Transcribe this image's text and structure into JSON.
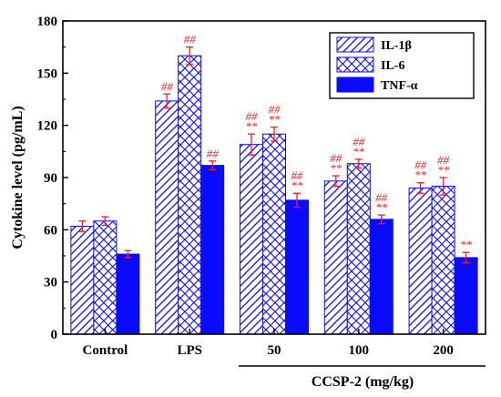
{
  "chart_data": {
    "type": "bar",
    "title": "",
    "xlabel": "CCSP-2 (mg/kg)",
    "ylabel": "Cytokine level (pg/mL)",
    "ylim": [
      0,
      180
    ],
    "yticks": [
      "0",
      "30",
      "60",
      "90",
      "120",
      "150",
      "180"
    ],
    "categories": [
      "Control",
      "LPS",
      "50",
      "100",
      "200"
    ],
    "bracket_categories": [
      "50",
      "100",
      "200"
    ],
    "legend_position": "top-right",
    "series": [
      {
        "name": "IL-1β",
        "pattern": "diagonal-hatch",
        "values": [
          62,
          134,
          109,
          88,
          84
        ],
        "errors": [
          3,
          4,
          6,
          3,
          3
        ],
        "annotations": [
          [],
          [
            "##"
          ],
          [
            "##",
            "**"
          ],
          [
            "##",
            "**"
          ],
          [
            "##",
            "**"
          ]
        ]
      },
      {
        "name": "IL-6",
        "pattern": "cross-hatch",
        "values": [
          65,
          160,
          115,
          98,
          85
        ],
        "errors": [
          2.5,
          5,
          4,
          2.5,
          5
        ],
        "annotations": [
          [],
          [
            "##"
          ],
          [
            "##",
            "**"
          ],
          [
            "##",
            "**"
          ],
          [
            "##",
            "**"
          ]
        ]
      },
      {
        "name": "TNF-α",
        "pattern": "solid",
        "values": [
          46,
          97,
          77,
          66,
          44
        ],
        "errors": [
          2,
          2.5,
          4,
          2.5,
          3
        ],
        "annotations": [
          [],
          [
            "##"
          ],
          [
            "##",
            "**"
          ],
          [
            "##",
            "**"
          ],
          [
            "**"
          ]
        ]
      }
    ],
    "colors": {
      "bar": "#0a0aff",
      "annotation": "#ff1a1a",
      "axis": "#000000"
    }
  }
}
